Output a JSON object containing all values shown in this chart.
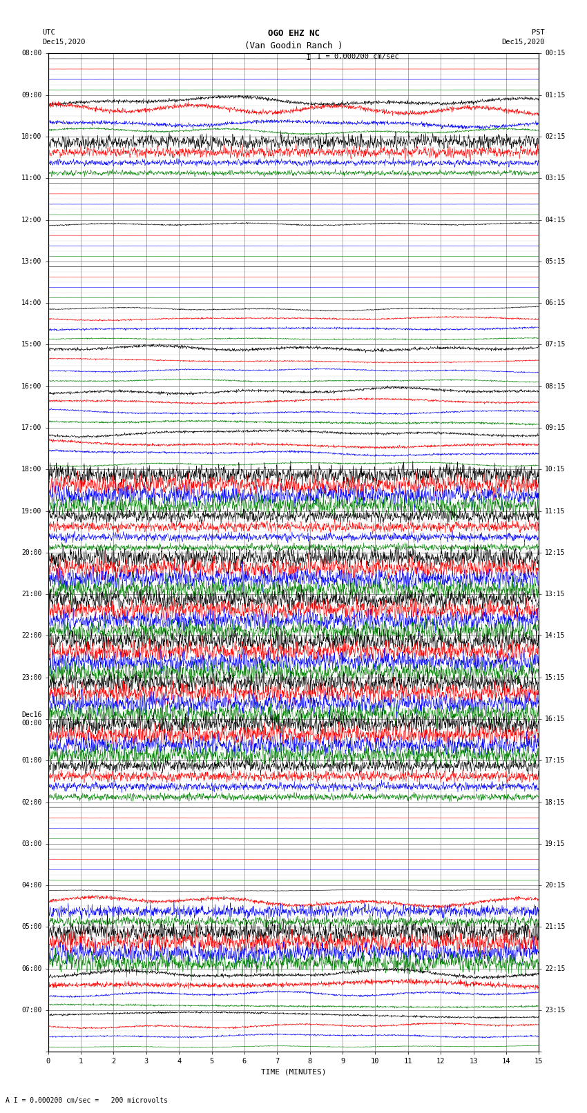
{
  "title_line1": "OGO EHZ NC",
  "title_line2": "(Van Goodin Ranch )",
  "scale_label": "I = 0.000200 cm/sec",
  "bottom_label": "A I = 0.000200 cm/sec =   200 microvolts",
  "utc_label": "UTC\nDec15,2020",
  "pst_label": "PST\nDec15,2020",
  "xlabel": "TIME (MINUTES)",
  "left_hour_labels": [
    "08:00",
    "09:00",
    "10:00",
    "11:00",
    "12:00",
    "13:00",
    "14:00",
    "15:00",
    "16:00",
    "17:00",
    "18:00",
    "19:00",
    "20:00",
    "21:00",
    "22:00",
    "23:00",
    "Dec16\n00:00",
    "01:00",
    "02:00",
    "03:00",
    "04:00",
    "05:00",
    "06:00",
    "07:00"
  ],
  "right_hour_labels": [
    "00:15",
    "01:15",
    "02:15",
    "03:15",
    "04:15",
    "05:15",
    "06:15",
    "07:15",
    "08:15",
    "09:15",
    "10:15",
    "11:15",
    "12:15",
    "13:15",
    "14:15",
    "15:15",
    "16:15",
    "17:15",
    "18:15",
    "19:15",
    "20:15",
    "21:15",
    "22:15",
    "23:15"
  ],
  "n_rows": 96,
  "rows_per_hour": 4,
  "n_hours": 24,
  "n_minutes": 15,
  "bg_color": "#ffffff",
  "grid_color": "#aaaaaa",
  "colors_cycle": [
    "black",
    "red",
    "blue",
    "green"
  ],
  "row_amplitudes": [
    0.02,
    0.02,
    0.02,
    0.02,
    0.5,
    0.6,
    0.4,
    0.35,
    0.7,
    0.5,
    0.3,
    0.25,
    0.02,
    0.02,
    0.02,
    0.02,
    0.15,
    0.02,
    0.02,
    0.02,
    0.02,
    0.02,
    0.02,
    0.02,
    0.2,
    0.2,
    0.15,
    0.1,
    0.3,
    0.25,
    0.2,
    0.15,
    0.35,
    0.3,
    0.25,
    0.2,
    0.4,
    0.35,
    0.3,
    0.25,
    0.95,
    0.95,
    0.95,
    0.95,
    0.6,
    0.5,
    0.4,
    0.35,
    0.95,
    0.95,
    0.95,
    0.95,
    0.95,
    0.95,
    0.95,
    0.95,
    0.95,
    0.95,
    0.95,
    0.95,
    0.95,
    0.95,
    0.95,
    0.95,
    0.95,
    0.95,
    0.95,
    0.95,
    0.6,
    0.5,
    0.4,
    0.35,
    0.02,
    0.02,
    0.02,
    0.02,
    0.02,
    0.02,
    0.02,
    0.02,
    0.15,
    0.6,
    0.6,
    0.5,
    0.95,
    0.95,
    0.95,
    0.95,
    0.5,
    0.4,
    0.3,
    0.2,
    0.4,
    0.3,
    0.2,
    0.1
  ],
  "row_freq_high": [
    false,
    false,
    false,
    false,
    false,
    false,
    false,
    false,
    true,
    true,
    true,
    true,
    true,
    true,
    true,
    true,
    false,
    false,
    false,
    false,
    false,
    false,
    false,
    false,
    false,
    false,
    false,
    false,
    false,
    false,
    false,
    false,
    false,
    false,
    false,
    false,
    false,
    false,
    false,
    false,
    true,
    true,
    true,
    true,
    true,
    true,
    true,
    true,
    true,
    true,
    true,
    true,
    true,
    true,
    true,
    true,
    true,
    true,
    true,
    true,
    true,
    true,
    true,
    true,
    true,
    true,
    true,
    true,
    true,
    true,
    true,
    true,
    false,
    false,
    false,
    false,
    false,
    false,
    false,
    false,
    false,
    false,
    true,
    true,
    true,
    true,
    true,
    true,
    false,
    false,
    false,
    false,
    false,
    false,
    false,
    false
  ]
}
